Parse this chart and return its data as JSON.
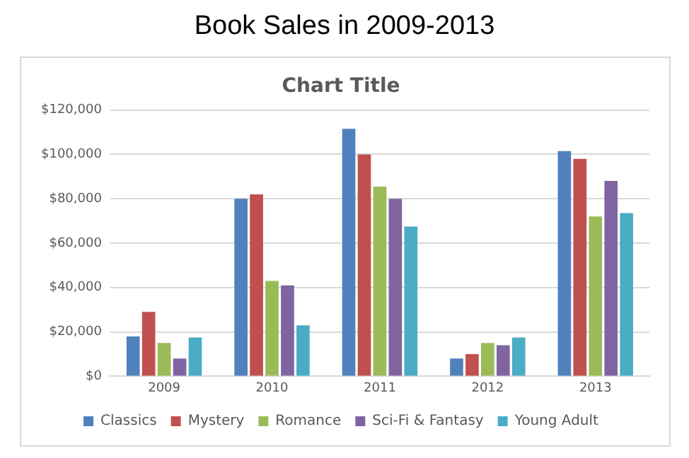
{
  "chart_data": {
    "type": "bar",
    "title": "Book Sales in 2009-2013",
    "subtitle": "Chart Title",
    "categories": [
      "2009",
      "2010",
      "2011",
      "2012",
      "2013"
    ],
    "series": [
      {
        "name": "Classics",
        "color": "#4f81bd",
        "values": [
          18000,
          80000,
          111500,
          8000,
          101500
        ]
      },
      {
        "name": "Mystery",
        "color": "#c0504d",
        "values": [
          29000,
          82000,
          100000,
          10000,
          98000
        ]
      },
      {
        "name": "Romance",
        "color": "#9bbb59",
        "values": [
          15000,
          43000,
          85500,
          15000,
          72000
        ]
      },
      {
        "name": "Sci-Fi & Fantasy",
        "color": "#8064a2",
        "values": [
          8000,
          41000,
          80000,
          14000,
          88000
        ]
      },
      {
        "name": "Young Adult",
        "color": "#4bacc6",
        "values": [
          17500,
          23000,
          67500,
          17500,
          73500
        ]
      }
    ],
    "ylim": [
      0,
      120000
    ],
    "yticks": [
      {
        "value": 0,
        "label": "$0"
      },
      {
        "value": 20000,
        "label": "$20,000"
      },
      {
        "value": 40000,
        "label": "$40,000"
      },
      {
        "value": 60000,
        "label": "$60,000"
      },
      {
        "value": 80000,
        "label": "$80,000"
      },
      {
        "value": 100000,
        "label": "$100,000"
      },
      {
        "value": 120000,
        "label": "$120,000"
      }
    ],
    "grid": "y",
    "legend": "bottom"
  }
}
